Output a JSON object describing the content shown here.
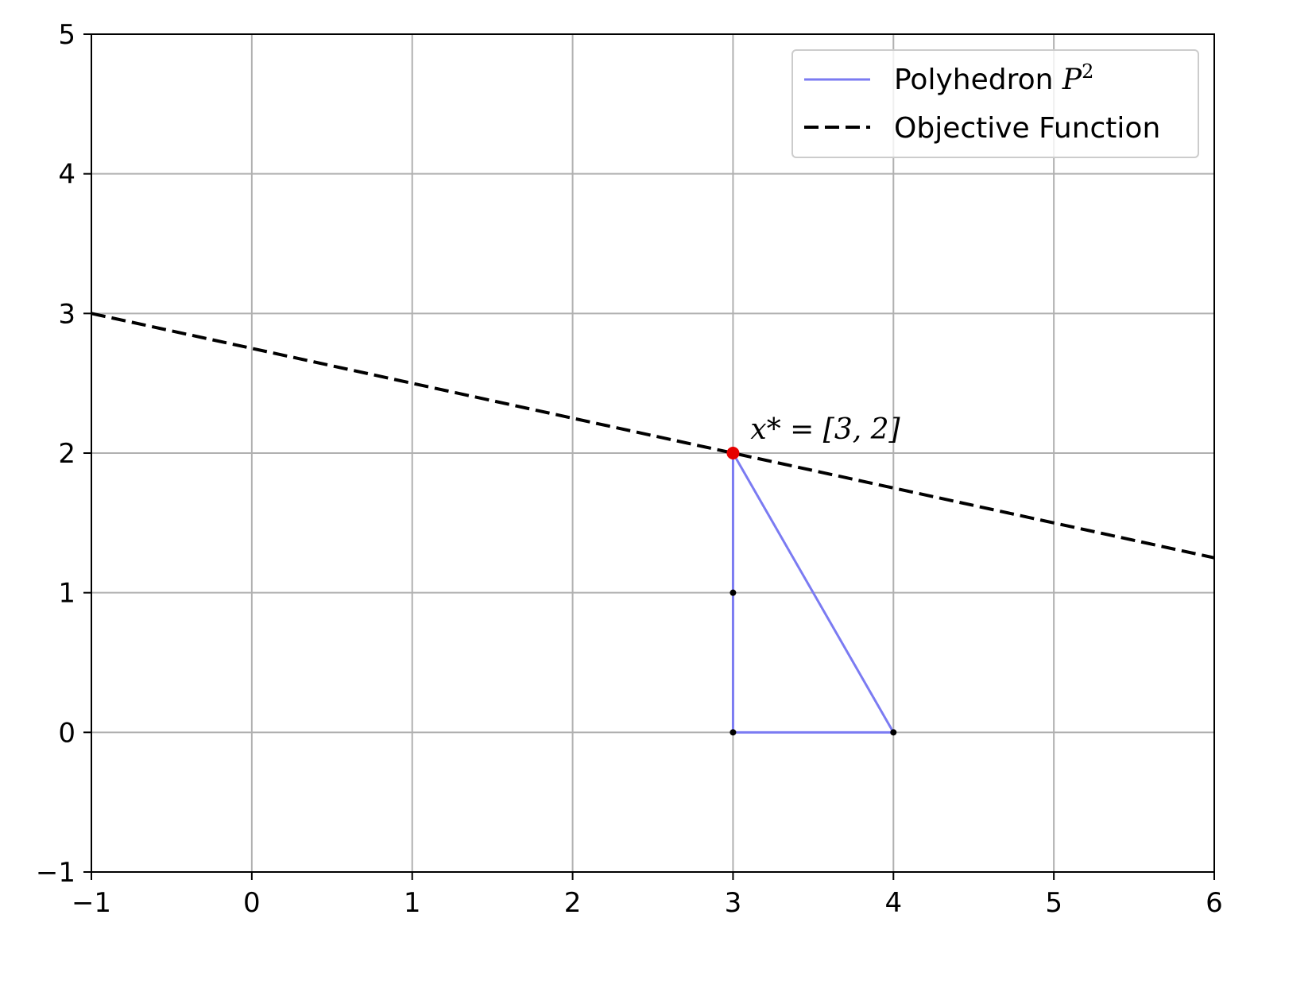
{
  "chart_data": {
    "type": "line",
    "title": "",
    "xlabel": "",
    "ylabel": "",
    "xlim": [
      -1,
      6
    ],
    "ylim": [
      -1,
      5
    ],
    "xticks": [
      -1,
      0,
      1,
      2,
      3,
      4,
      5,
      6
    ],
    "yticks": [
      -1,
      0,
      1,
      2,
      3,
      4,
      5
    ],
    "xtick_labels": [
      "−1",
      "0",
      "1",
      "2",
      "3",
      "4",
      "5",
      "6"
    ],
    "ytick_labels": [
      "−1",
      "0",
      "1",
      "2",
      "3",
      "4",
      "5"
    ],
    "grid": true,
    "legend_position": "top-right",
    "series": [
      {
        "name": "Polyhedron",
        "name_math": "P",
        "name_math_sup": "2",
        "style": "solid",
        "color": "#7b7bf2",
        "x": [
          3,
          3,
          4,
          3
        ],
        "y": [
          2,
          0,
          0,
          2
        ]
      },
      {
        "name": "Objective Function",
        "style": "dashed",
        "color": "#000000",
        "x": [
          -1,
          6
        ],
        "y": [
          3,
          1.25
        ]
      }
    ],
    "vertices": {
      "color": "#000000",
      "points": [
        [
          3,
          1
        ],
        [
          3,
          0
        ],
        [
          4,
          0
        ]
      ]
    },
    "optimum": {
      "color": "#e60000",
      "x": 3,
      "y": 2,
      "label": "x* = [3, 2]"
    }
  }
}
